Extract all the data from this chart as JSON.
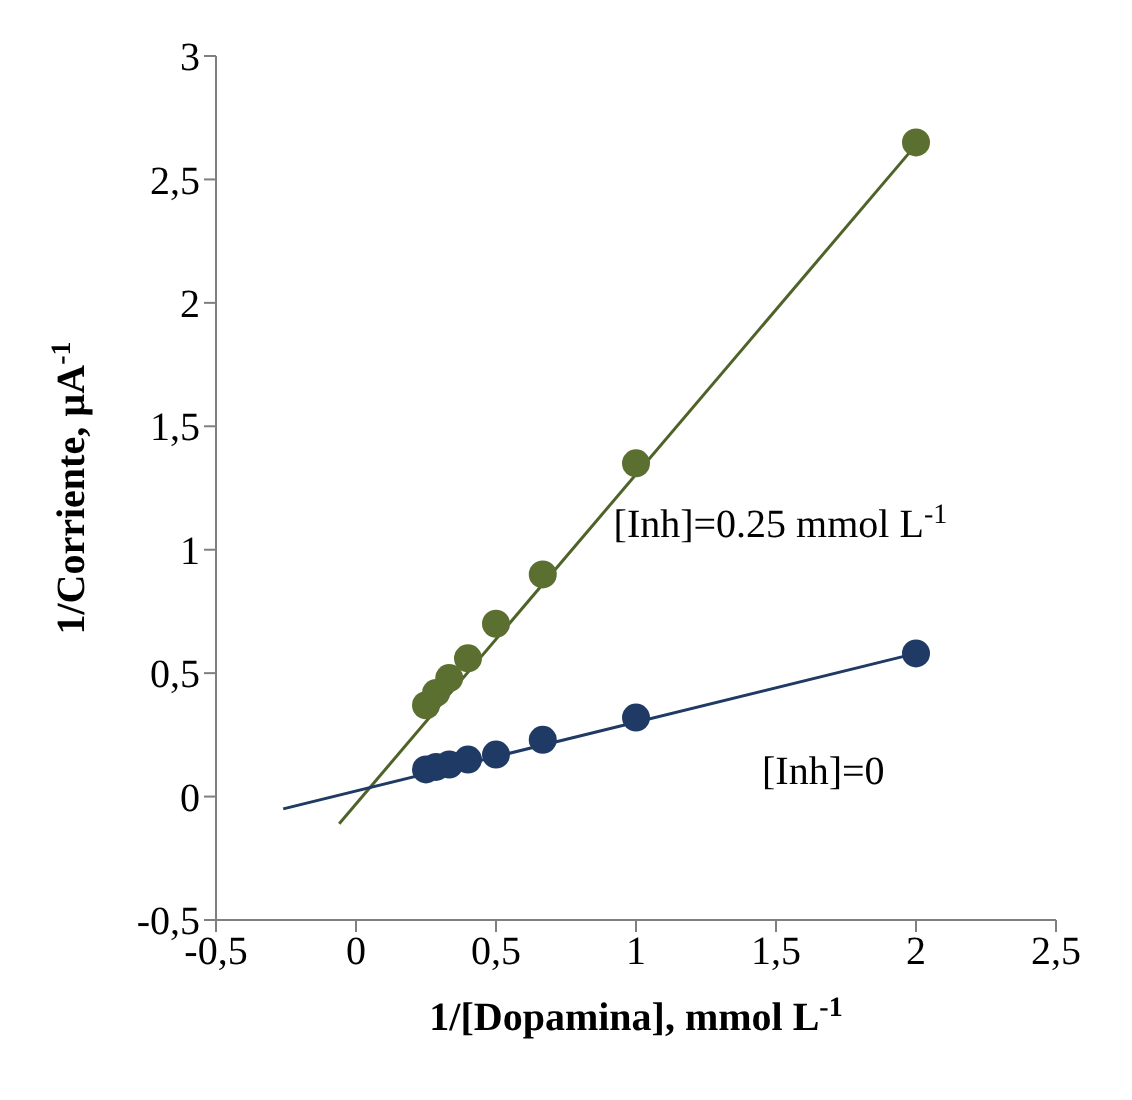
{
  "chart_data": {
    "type": "scatter",
    "xlabel": "1/[Dopamina], mmol L$^{-1}$",
    "ylabel": "1/Corriente, µA$^{-1}$",
    "xlim": [
      -0.5,
      2.5
    ],
    "xticks": [
      {
        "value": -0.5,
        "label": "-0,5"
      },
      0,
      {
        "value": 0.5,
        "label": "0,5"
      },
      1,
      {
        "value": 1.5,
        "label": "1,5"
      },
      2,
      {
        "value": 2.5,
        "label": "2,5"
      }
    ],
    "ylim": [
      -0.5,
      3
    ],
    "yticks": [
      {
        "value": -0.5,
        "label": "-0,5"
      },
      0,
      {
        "value": 0.5,
        "label": "0,5"
      },
      1,
      {
        "value": 1.5,
        "label": "1,5"
      },
      2,
      {
        "value": 2.5,
        "label": "2,5"
      },
      3
    ],
    "grid": false,
    "legend": false,
    "marker": "circle",
    "series": [
      {
        "color": "#5b7030",
        "x": [
          0.25,
          0.286,
          0.333,
          0.4,
          0.5,
          0.667,
          1,
          2
        ],
        "values": [
          0.37,
          0.42,
          0.48,
          0.56,
          0.7,
          0.9,
          1.35,
          2.65
        ]
      },
      {
        "color": "#1f3a64",
        "x": [
          0.25,
          0.286,
          0.333,
          0.4,
          0.5,
          0.667,
          1,
          2
        ],
        "values": [
          0.11,
          0.12,
          0.13,
          0.15,
          0.17,
          0.23,
          0.32,
          0.58
        ]
      },
      {
        "type": "line",
        "marker": "none",
        "color": "#4f6228",
        "x": [
          -0.06,
          2
        ],
        "values": [
          -0.11,
          2.64
        ]
      },
      {
        "type": "line",
        "marker": "none",
        "color": "#1f3a64",
        "x": [
          -0.26,
          2
        ],
        "values": [
          -0.05,
          0.58
        ]
      }
    ],
    "annotations": [
      "[Inh]=0.25 mmol L$^{-1}$",
      "[Inh]=0"
    ]
  }
}
